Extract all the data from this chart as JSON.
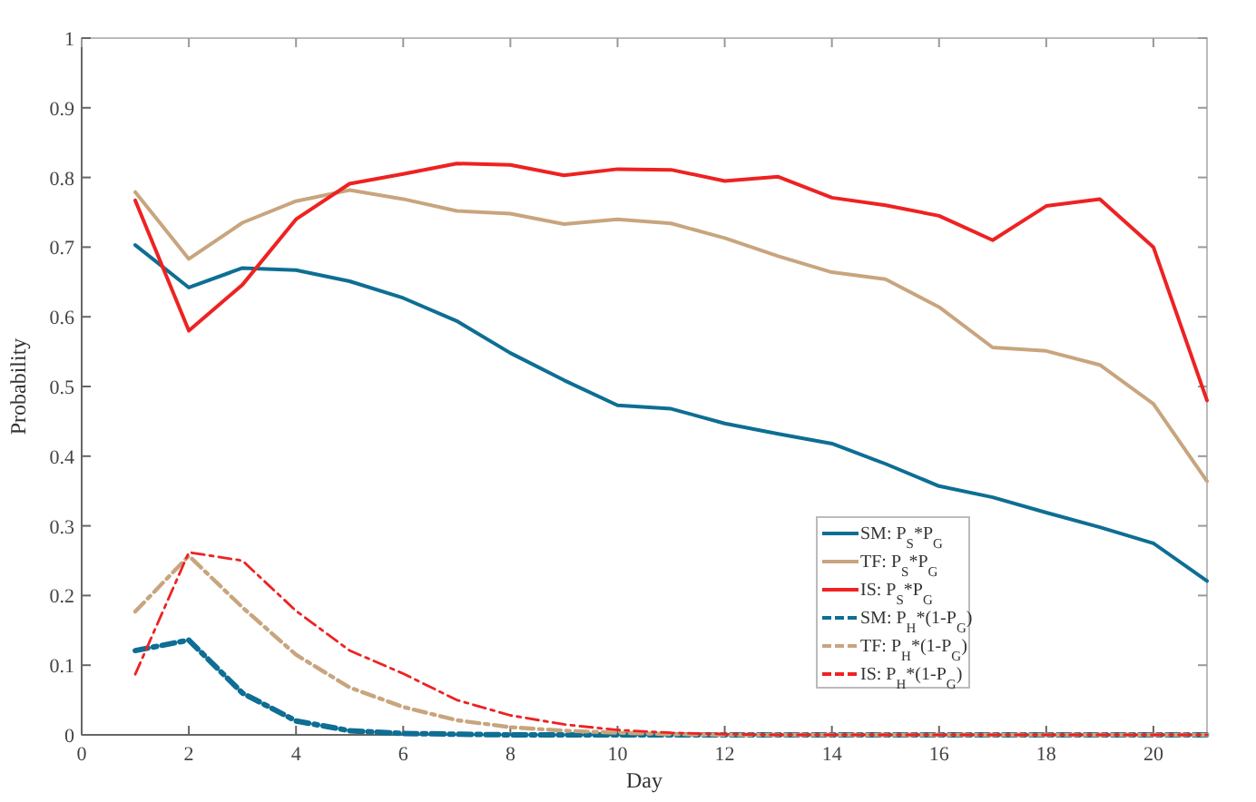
{
  "chart_data": {
    "type": "line",
    "xlabel": "Day",
    "ylabel": "Probability",
    "x": [
      1,
      2,
      3,
      4,
      5,
      6,
      7,
      8,
      9,
      10,
      11,
      12,
      13,
      14,
      15,
      16,
      17,
      18,
      19,
      20,
      21
    ],
    "xlim": [
      0,
      21
    ],
    "xticks": [
      0,
      2,
      4,
      6,
      8,
      10,
      12,
      14,
      16,
      18,
      20
    ],
    "ylim": [
      0,
      1
    ],
    "yticks": [
      0,
      0.1,
      0.2,
      0.3,
      0.4,
      0.5,
      0.6,
      0.7,
      0.8,
      0.9,
      1
    ],
    "grid": false,
    "legend": "bottom right",
    "series": [
      {
        "name": "SM: P$_{S}$*P$_{G}$",
        "color": "#0e6e94",
        "line_style": "solid",
        "values": [
          0.703,
          0.642,
          0.67,
          0.667,
          0.651,
          0.627,
          0.594,
          0.548,
          0.509,
          0.473,
          0.468,
          0.447,
          0.432,
          0.418,
          0.389,
          0.357,
          0.341,
          0.319,
          0.298,
          0.275,
          0.221
        ]
      },
      {
        "name": "TF: P$_{S}$*P$_{G}$",
        "color": "#c8a57e",
        "line_style": "solid",
        "values": [
          0.779,
          0.683,
          0.735,
          0.766,
          0.782,
          0.769,
          0.752,
          0.748,
          0.733,
          0.74,
          0.734,
          0.713,
          0.687,
          0.664,
          0.654,
          0.614,
          0.556,
          0.551,
          0.531,
          0.475,
          0.364
        ]
      },
      {
        "name": "IS: P$_{S}$*P$_{G}$",
        "color": "#ee2222",
        "line_style": "solid",
        "values": [
          0.767,
          0.58,
          0.646,
          0.74,
          0.791,
          0.805,
          0.82,
          0.818,
          0.803,
          0.812,
          0.811,
          0.795,
          0.801,
          0.771,
          0.76,
          0.745,
          0.71,
          0.759,
          0.769,
          0.7,
          0.48
        ]
      },
      {
        "name": "SM: P$_{H}$*(1-P$_{G}$)",
        "color": "#0e6e94",
        "line_style": "dashed",
        "values": [
          0.121,
          0.136,
          0.06,
          0.02,
          0.006,
          0.002,
          0.001,
          0,
          0,
          0,
          0,
          0,
          0,
          0,
          0,
          0,
          0,
          0,
          0,
          0,
          0
        ]
      },
      {
        "name": "TF: P$_{H}$*(1-P$_{G}$)",
        "color": "#c8a57e",
        "line_style": "dashed",
        "values": [
          0.177,
          0.257,
          0.183,
          0.115,
          0.068,
          0.04,
          0.021,
          0.011,
          0.006,
          0.003,
          0.001,
          0,
          0,
          0,
          0,
          0,
          0,
          0,
          0,
          0,
          0
        ]
      },
      {
        "name": "IS: P$_{H}$*(1-P$_{G}$)",
        "color": "#ee2222",
        "line_style": "dashed",
        "values": [
          0.087,
          0.262,
          0.25,
          0.178,
          0.121,
          0.088,
          0.05,
          0.028,
          0.015,
          0.007,
          0.003,
          0.001,
          0,
          0,
          0,
          0,
          0,
          0,
          0,
          0,
          0
        ]
      }
    ]
  }
}
